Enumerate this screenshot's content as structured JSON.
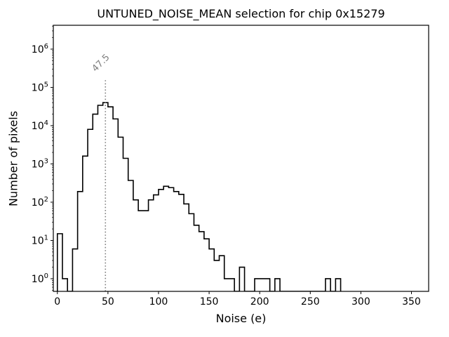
{
  "figure": {
    "background": "#ffffff",
    "text_color": "#000000"
  },
  "chart_data": {
    "type": "bar",
    "subtype": "step-histogram",
    "title": "UNTUNED_NOISE_MEAN selection for chip 0x15279",
    "xlabel": "Noise (e)",
    "ylabel": "Number of pixels",
    "yscale": "log",
    "grid": false,
    "legend": null,
    "bin_start": 0,
    "bin_width": 5,
    "counts": [
      15,
      1,
      0,
      6,
      190,
      1600,
      8000,
      20000,
      34000,
      40000,
      31000,
      15000,
      5000,
      1400,
      370,
      115,
      60,
      60,
      115,
      155,
      215,
      260,
      240,
      190,
      160,
      90,
      50,
      25,
      17,
      11,
      6,
      3,
      4,
      1,
      1,
      0,
      2,
      0,
      0,
      1,
      1,
      1,
      0,
      1,
      0,
      0,
      0,
      0,
      0,
      0,
      0,
      0,
      0,
      1,
      0,
      1
    ],
    "xlim": [
      -4,
      367
    ],
    "ylim": [
      0.467,
      4200000
    ],
    "xticks": [
      "0",
      "50",
      "100",
      "150",
      "200",
      "250",
      "300",
      "350"
    ],
    "xtick_values": [
      0,
      50,
      100,
      150,
      200,
      250,
      300,
      350
    ],
    "ytick_base": "10",
    "ytick_exponents": [
      "0",
      "1",
      "2",
      "3",
      "4",
      "5",
      "6"
    ],
    "line_color": "#000000",
    "vline": {
      "x": 47.5,
      "label": "47.5",
      "color": "#808080",
      "style": "dotted",
      "ymax_frac": 0.8,
      "label_rotation_deg": -45
    }
  }
}
